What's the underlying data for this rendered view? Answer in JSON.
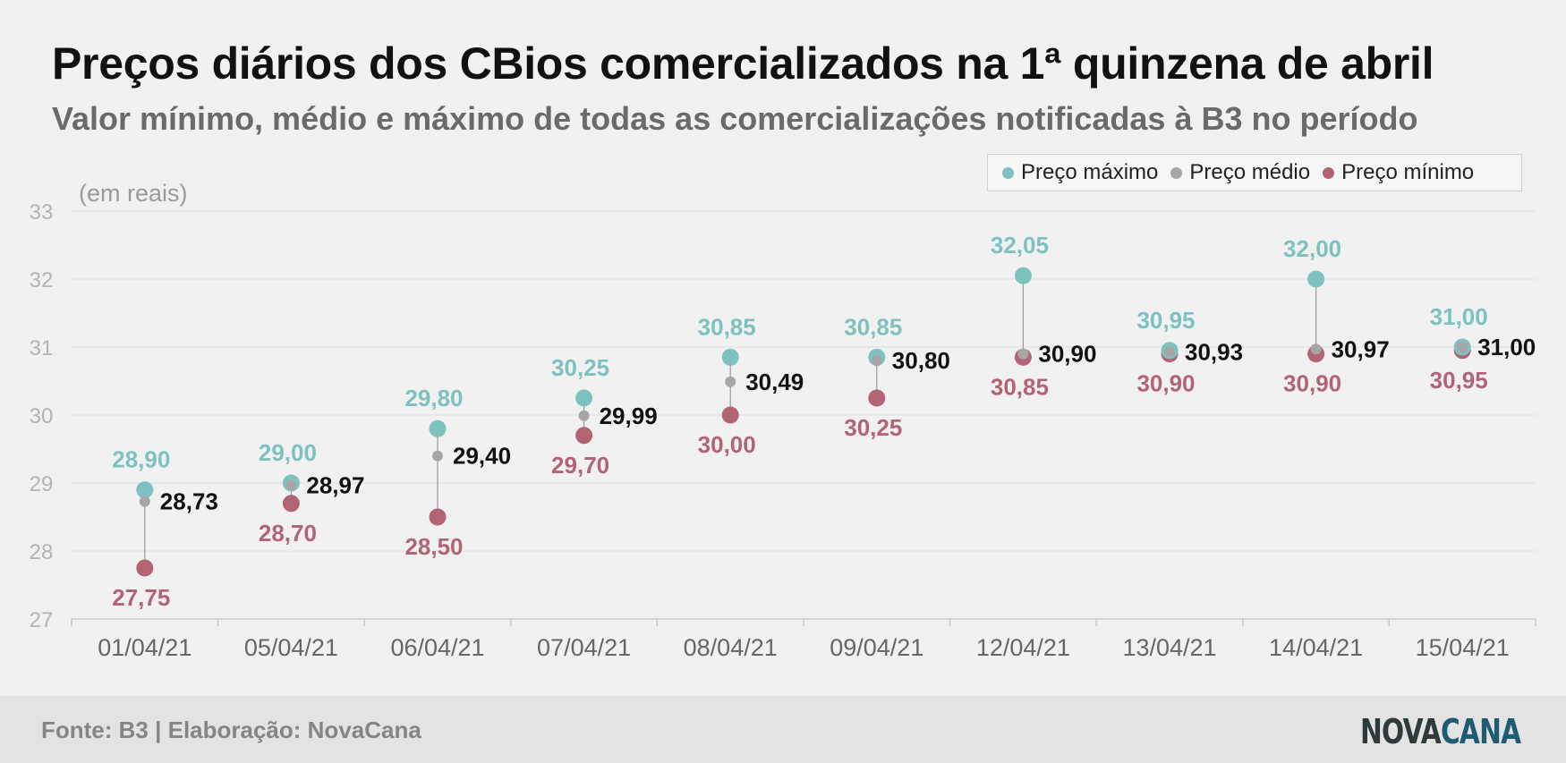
{
  "title": "Preços diários dos CBios comercializados na 1ª quinzena de abril",
  "subtitle": "Valor mínimo, médio e máximo de todas as comercializações notificadas à B3 no período",
  "unit_label": "(em reais)",
  "legend": {
    "max_label": "Preço máximo",
    "avg_label": "Preço médio",
    "min_label": "Preço mínimo"
  },
  "colors": {
    "max": "#7ec2bf",
    "avg": "#a6a6a6",
    "min": "#b26475",
    "max_label": "#7ec2bf",
    "min_label": "#b26475",
    "avg_label": "#111111"
  },
  "footer": {
    "source": "Fonte: B3 | Elaboração: NovaCana",
    "logo_part1": "NOVA",
    "logo_part2": "CANA"
  },
  "chart_data": {
    "type": "scatter",
    "title": "Preços diários dos CBios comercializados na 1ª quinzena de abril",
    "subtitle": "Valor mínimo, médio e máximo de todas as comercializações notificadas à B3 no período",
    "ylabel": "(em reais)",
    "ylim": [
      27,
      33
    ],
    "yticks": [
      "27",
      "28",
      "29",
      "30",
      "31",
      "32",
      "33"
    ],
    "grid": true,
    "legend_position": "top-right",
    "categories": [
      "01/04/21",
      "05/04/21",
      "06/04/21",
      "07/04/21",
      "08/04/21",
      "09/04/21",
      "12/04/21",
      "13/04/21",
      "14/04/21",
      "15/04/21"
    ],
    "series": [
      {
        "name": "Preço máximo",
        "values": [
          28.9,
          29.0,
          29.8,
          30.25,
          30.85,
          30.85,
          32.05,
          30.95,
          32.0,
          31.0
        ],
        "labels": [
          "28,90",
          "29,00",
          "29,80",
          "30,25",
          "30,85",
          "30,85",
          "32,05",
          "30,95",
          "32,00",
          "31,00"
        ]
      },
      {
        "name": "Preço médio",
        "values": [
          28.73,
          28.97,
          29.4,
          29.99,
          30.49,
          30.8,
          30.9,
          30.93,
          30.97,
          31.0
        ],
        "labels": [
          "28,73",
          "28,97",
          "29,40",
          "29,99",
          "30,49",
          "30,80",
          "30,90",
          "30,93",
          "30,97",
          "31,00"
        ]
      },
      {
        "name": "Preço mínimo",
        "values": [
          27.75,
          28.7,
          28.5,
          29.7,
          30.0,
          30.25,
          30.85,
          30.9,
          30.9,
          30.95
        ],
        "labels": [
          "27,75",
          "28,70",
          "28,50",
          "29,70",
          "30,00",
          "30,25",
          "30,85",
          "30,90",
          "30,90",
          "30,95"
        ]
      }
    ]
  }
}
